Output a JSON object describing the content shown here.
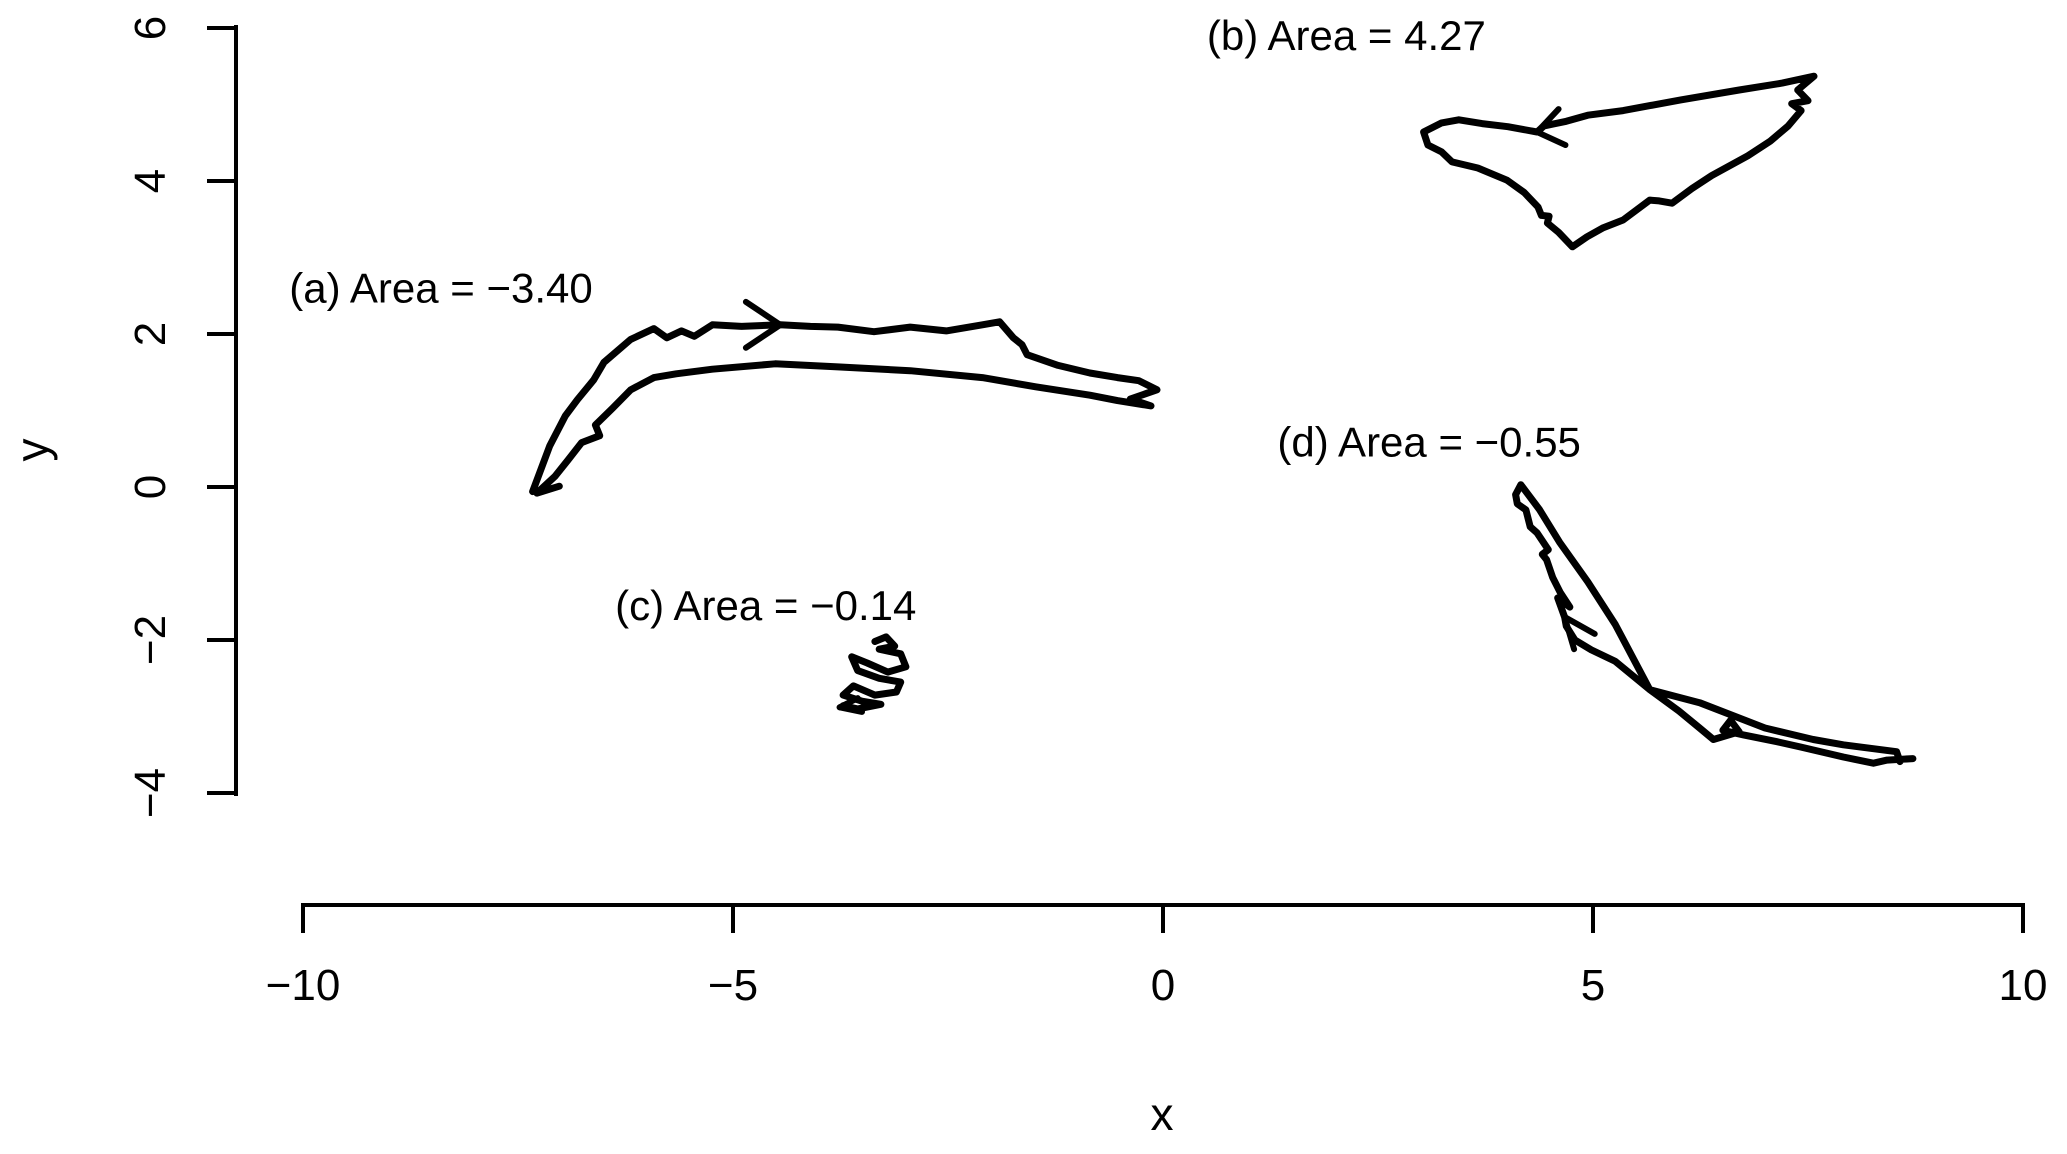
{
  "figure": {
    "background": "#ffffff",
    "foreground": "#000000"
  },
  "chart_data": {
    "type": "line",
    "title": "",
    "xlabel": "x",
    "ylabel": "y",
    "xlim": [
      -10,
      10
    ],
    "ylim": [
      -4,
      6
    ],
    "grid": false,
    "legend": "none",
    "x_ticks": {
      "values": [
        -10,
        -5,
        0,
        5,
        10
      ],
      "labels": [
        "−10",
        "−5",
        "0",
        "5",
        "10"
      ]
    },
    "y_ticks": {
      "values": [
        -4,
        -2,
        0,
        2,
        4,
        6
      ],
      "labels": [
        "−4",
        "−2",
        "0",
        "2",
        "4",
        "6"
      ]
    },
    "series": [
      {
        "id": "a",
        "label": "(a) Area =  −3.40",
        "area": -3.4,
        "label_pos": [
          -10.16,
          2.41
        ],
        "arrow": {
          "tip": [
            -4.45,
            2.12
          ],
          "barbs": [
            [
              -4.85,
              2.42
            ],
            [
              -4.85,
              1.82
            ]
          ]
        },
        "points": [
          [
            -7.33,
            -0.06
          ],
          [
            -7.13,
            0.54
          ],
          [
            -6.95,
            0.93
          ],
          [
            -6.81,
            1.14
          ],
          [
            -6.62,
            1.4
          ],
          [
            -6.5,
            1.63
          ],
          [
            -6.19,
            1.93
          ],
          [
            -5.92,
            2.07
          ],
          [
            -5.77,
            1.95
          ],
          [
            -5.6,
            2.04
          ],
          [
            -5.45,
            1.97
          ],
          [
            -5.24,
            2.12
          ],
          [
            -4.9,
            2.1
          ],
          [
            -4.45,
            2.12
          ],
          [
            -4.1,
            2.1
          ],
          [
            -3.78,
            2.09
          ],
          [
            -3.36,
            2.03
          ],
          [
            -2.94,
            2.09
          ],
          [
            -2.52,
            2.04
          ],
          [
            -2.1,
            2.12
          ],
          [
            -1.9,
            2.16
          ],
          [
            -1.74,
            1.95
          ],
          [
            -1.64,
            1.86
          ],
          [
            -1.58,
            1.73
          ],
          [
            -1.22,
            1.59
          ],
          [
            -0.85,
            1.49
          ],
          [
            -0.53,
            1.43
          ],
          [
            -0.28,
            1.39
          ],
          [
            -0.07,
            1.27
          ],
          [
            -0.38,
            1.15
          ],
          [
            -0.14,
            1.06
          ],
          [
            -0.53,
            1.13
          ],
          [
            -0.85,
            1.2
          ],
          [
            -1.48,
            1.31
          ],
          [
            -2.1,
            1.43
          ],
          [
            -2.94,
            1.52
          ],
          [
            -3.78,
            1.57
          ],
          [
            -4.51,
            1.61
          ],
          [
            -5.24,
            1.54
          ],
          [
            -5.66,
            1.48
          ],
          [
            -5.92,
            1.43
          ],
          [
            -6.19,
            1.27
          ],
          [
            -6.4,
            1.03
          ],
          [
            -6.6,
            0.81
          ],
          [
            -6.55,
            0.67
          ],
          [
            -6.76,
            0.58
          ],
          [
            -6.92,
            0.35
          ],
          [
            -7.07,
            0.14
          ],
          [
            -7.28,
            -0.08
          ],
          [
            -7.02,
            0.01
          ]
        ]
      },
      {
        "id": "b",
        "label": "(b) Area =  4.27",
        "area": 4.27,
        "label_pos": [
          0.51,
          5.71
        ],
        "arrow": {
          "tip": [
            4.35,
            4.64
          ],
          "barbs": [
            [
              4.6,
              4.94
            ],
            [
              4.68,
              4.47
            ]
          ]
        },
        "points": [
          [
            7.57,
            5.37
          ],
          [
            7.2,
            5.28
          ],
          [
            6.7,
            5.19
          ],
          [
            6.02,
            5.06
          ],
          [
            5.35,
            4.92
          ],
          [
            4.94,
            4.86
          ],
          [
            4.69,
            4.78
          ],
          [
            4.43,
            4.72
          ],
          [
            4.35,
            4.64
          ],
          [
            4.01,
            4.71
          ],
          [
            3.71,
            4.75
          ],
          [
            3.44,
            4.8
          ],
          [
            3.24,
            4.76
          ],
          [
            3.03,
            4.64
          ],
          [
            3.08,
            4.47
          ],
          [
            3.24,
            4.38
          ],
          [
            3.36,
            4.25
          ],
          [
            3.66,
            4.17
          ],
          [
            4.0,
            4.01
          ],
          [
            4.2,
            3.85
          ],
          [
            4.36,
            3.66
          ],
          [
            4.4,
            3.55
          ],
          [
            4.49,
            3.54
          ],
          [
            4.47,
            3.45
          ],
          [
            4.6,
            3.33
          ],
          [
            4.76,
            3.14
          ],
          [
            4.93,
            3.27
          ],
          [
            5.12,
            3.39
          ],
          [
            5.35,
            3.49
          ],
          [
            5.66,
            3.75
          ],
          [
            5.77,
            3.74
          ],
          [
            5.92,
            3.71
          ],
          [
            6.15,
            3.9
          ],
          [
            6.38,
            4.07
          ],
          [
            6.8,
            4.33
          ],
          [
            7.06,
            4.52
          ],
          [
            7.27,
            4.72
          ],
          [
            7.42,
            4.92
          ],
          [
            7.31,
            5.01
          ],
          [
            7.5,
            5.05
          ],
          [
            7.38,
            5.19
          ],
          [
            7.57,
            5.37
          ]
        ]
      },
      {
        "id": "c",
        "label": "(c) Area =  −0.14",
        "area": -0.14,
        "label_pos": [
          -6.37,
          -1.74
        ],
        "arrow": {
          "tip": [
            -3.76,
            -2.88
          ],
          "barbs": [
            [
              -3.55,
              -2.76
            ],
            [
              -3.5,
              -2.94
            ]
          ]
        },
        "points": [
          [
            -3.35,
            -2.02
          ],
          [
            -3.22,
            -1.96
          ],
          [
            -3.12,
            -2.08
          ],
          [
            -3.3,
            -2.12
          ],
          [
            -3.05,
            -2.18
          ],
          [
            -2.99,
            -2.35
          ],
          [
            -3.2,
            -2.42
          ],
          [
            -3.44,
            -2.3
          ],
          [
            -3.62,
            -2.22
          ],
          [
            -3.55,
            -2.4
          ],
          [
            -3.3,
            -2.5
          ],
          [
            -3.05,
            -2.55
          ],
          [
            -3.1,
            -2.68
          ],
          [
            -3.35,
            -2.72
          ],
          [
            -3.6,
            -2.6
          ],
          [
            -3.72,
            -2.72
          ],
          [
            -3.5,
            -2.8
          ],
          [
            -3.28,
            -2.84
          ],
          [
            -3.55,
            -2.9
          ],
          [
            -3.72,
            -2.86
          ]
        ]
      },
      {
        "id": "d",
        "label": "(d) Area =  −0.55",
        "area": -0.55,
        "label_pos": [
          1.33,
          0.4
        ],
        "arrow": {
          "tip": [
            4.67,
            -1.7
          ],
          "barbs": [
            [
              5.02,
              -1.92
            ],
            [
              4.78,
              -2.12
            ]
          ]
        },
        "points": [
          [
            8.72,
            -3.55
          ],
          [
            8.42,
            -3.57
          ],
          [
            8.26,
            -3.61
          ],
          [
            7.91,
            -3.53
          ],
          [
            7.42,
            -3.4
          ],
          [
            7.14,
            -3.33
          ],
          [
            6.75,
            -3.24
          ],
          [
            6.51,
            -3.18
          ],
          [
            6.6,
            -3.05
          ],
          [
            6.7,
            -3.2
          ],
          [
            6.4,
            -3.3
          ],
          [
            6.24,
            -3.15
          ],
          [
            6.0,
            -2.93
          ],
          [
            5.66,
            -2.65
          ],
          [
            5.26,
            -2.28
          ],
          [
            4.98,
            -2.13
          ],
          [
            4.79,
            -2.0
          ],
          [
            4.69,
            -1.82
          ],
          [
            4.67,
            -1.7
          ],
          [
            4.59,
            -1.45
          ],
          [
            4.73,
            -1.57
          ],
          [
            4.62,
            -1.38
          ],
          [
            4.53,
            -1.18
          ],
          [
            4.46,
            -0.95
          ],
          [
            4.41,
            -0.88
          ],
          [
            4.48,
            -0.82
          ],
          [
            4.35,
            -0.6
          ],
          [
            4.27,
            -0.52
          ],
          [
            4.22,
            -0.3
          ],
          [
            4.12,
            -0.22
          ],
          [
            4.1,
            -0.1
          ],
          [
            4.16,
            0.03
          ],
          [
            4.38,
            -0.3
          ],
          [
            4.61,
            -0.72
          ],
          [
            4.94,
            -1.24
          ],
          [
            5.26,
            -1.8
          ],
          [
            5.66,
            -2.65
          ],
          [
            6.24,
            -2.82
          ],
          [
            7.0,
            -3.15
          ],
          [
            7.56,
            -3.3
          ],
          [
            7.91,
            -3.37
          ],
          [
            8.53,
            -3.46
          ],
          [
            8.57,
            -3.59
          ]
        ]
      }
    ]
  }
}
